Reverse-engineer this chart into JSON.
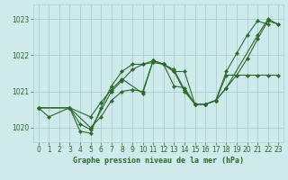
{
  "title": "Graphe pression niveau de la mer (hPa)",
  "background_color": "#ceeaea",
  "grid_color": "#aacfcf",
  "line_color": "#2d6a2d",
  "xlim": [
    -0.5,
    23.5
  ],
  "ylim": [
    1019.6,
    1023.4
  ],
  "yticks": [
    1020,
    1021,
    1022,
    1023
  ],
  "xticks": [
    0,
    1,
    2,
    3,
    4,
    5,
    6,
    7,
    8,
    9,
    10,
    11,
    12,
    13,
    14,
    15,
    16,
    17,
    18,
    19,
    20,
    21,
    22,
    23
  ],
  "series": [
    {
      "x": [
        0,
        1,
        3,
        4,
        5,
        6,
        7,
        8,
        9,
        10,
        11,
        12,
        13,
        14,
        15,
        16,
        17,
        18,
        19,
        20,
        21,
        22
      ],
      "y": [
        1020.55,
        1020.3,
        1020.55,
        1019.9,
        1019.85,
        1020.55,
        1021.15,
        1021.55,
        1021.75,
        1021.75,
        1021.8,
        1021.75,
        1021.55,
        1021.55,
        1020.65,
        1020.65,
        1020.75,
        1021.55,
        1022.05,
        1022.55,
        1022.95,
        1022.85
      ]
    },
    {
      "x": [
        0,
        3,
        4,
        5,
        7,
        8,
        9,
        10,
        11,
        12,
        13,
        14,
        15,
        16,
        17,
        18,
        21,
        22,
        23
      ],
      "y": [
        1020.55,
        1020.55,
        1020.1,
        1019.95,
        1021.0,
        1021.3,
        1021.6,
        1021.75,
        1021.85,
        1021.75,
        1021.15,
        1021.1,
        1020.65,
        1020.65,
        1020.75,
        1021.1,
        1022.55,
        1023.0,
        1022.85
      ]
    },
    {
      "x": [
        0,
        3,
        5,
        6,
        7,
        8,
        10,
        11,
        12,
        13,
        14,
        15,
        16,
        17,
        18,
        19,
        20,
        21,
        22,
        23
      ],
      "y": [
        1020.55,
        1020.55,
        1020.3,
        1020.7,
        1021.05,
        1021.35,
        1020.95,
        1021.85,
        1021.75,
        1021.6,
        1021.05,
        1020.65,
        1020.65,
        1020.75,
        1021.1,
        1021.45,
        1021.9,
        1022.45,
        1022.95,
        1022.85
      ]
    },
    {
      "x": [
        0,
        3,
        5,
        6,
        7,
        8,
        9,
        10,
        11,
        12,
        13,
        14,
        15,
        16,
        17,
        18,
        19,
        20,
        21,
        22,
        23
      ],
      "y": [
        1020.55,
        1020.55,
        1020.0,
        1020.3,
        1020.75,
        1021.0,
        1021.05,
        1021.0,
        1021.85,
        1021.75,
        1021.55,
        1021.0,
        1020.65,
        1020.65,
        1020.75,
        1021.45,
        1021.45,
        1021.45,
        1021.45,
        1021.45,
        1021.45
      ]
    }
  ]
}
